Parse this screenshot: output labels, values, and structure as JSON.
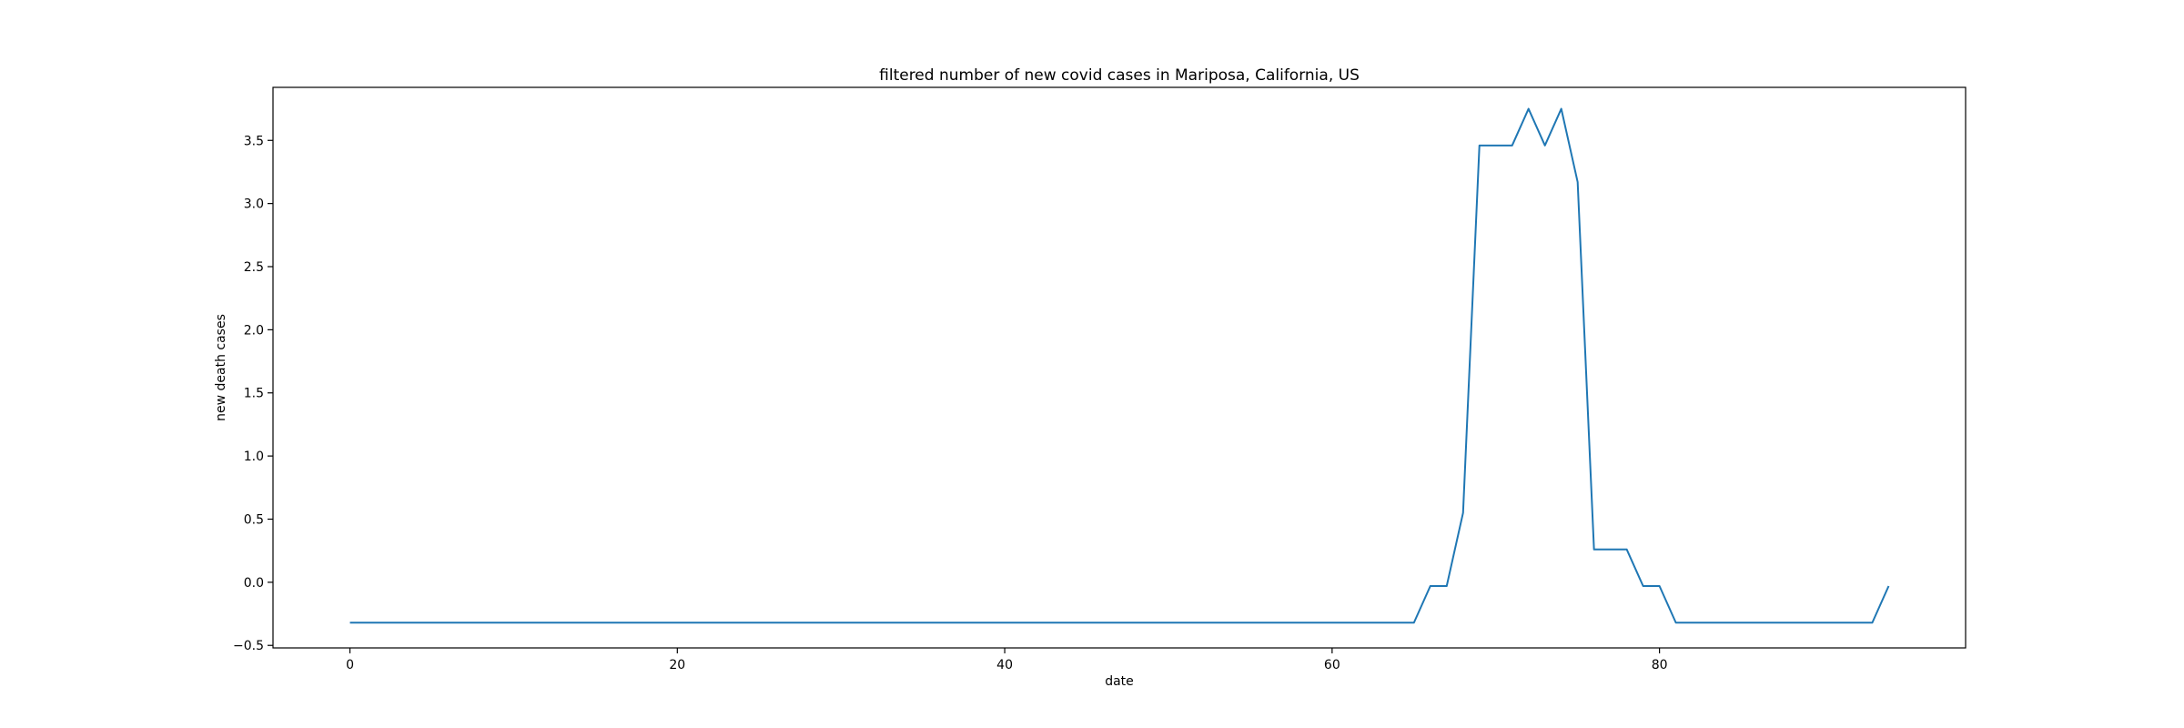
{
  "chart_data": {
    "type": "line",
    "title": "filtered number of new covid cases in Mariposa, California, US",
    "xlabel": "date",
    "ylabel": "new death cases",
    "xlim": [
      -4.7,
      98.7
    ],
    "ylim": [
      -0.52,
      3.92
    ],
    "xticks": [
      0,
      20,
      40,
      60,
      80
    ],
    "yticks": [
      -0.5,
      0.0,
      0.5,
      1.0,
      1.5,
      2.0,
      2.5,
      3.0,
      3.5
    ],
    "ytick_labels": [
      "−0.5",
      "0.0",
      "0.5",
      "1.0",
      "1.5",
      "2.0",
      "2.5",
      "3.0",
      "3.5"
    ],
    "grid": false,
    "legend": false,
    "series": [
      {
        "color": "#1f77b4",
        "x": [
          0,
          1,
          2,
          3,
          4,
          5,
          6,
          7,
          8,
          9,
          10,
          11,
          12,
          13,
          14,
          15,
          16,
          17,
          18,
          19,
          20,
          21,
          22,
          23,
          24,
          25,
          26,
          27,
          28,
          29,
          30,
          31,
          32,
          33,
          34,
          35,
          36,
          37,
          38,
          39,
          40,
          41,
          42,
          43,
          44,
          45,
          46,
          47,
          48,
          49,
          50,
          51,
          52,
          53,
          54,
          55,
          56,
          57,
          58,
          59,
          60,
          61,
          62,
          63,
          64,
          65,
          66,
          67,
          68,
          69,
          70,
          71,
          72,
          73,
          74,
          75,
          76,
          77,
          78,
          79,
          80,
          81,
          82,
          83,
          84,
          85,
          86,
          87,
          88,
          89,
          90,
          91,
          92,
          93,
          94
        ],
        "y": [
          -0.32,
          -0.32,
          -0.32,
          -0.32,
          -0.32,
          -0.32,
          -0.32,
          -0.32,
          -0.32,
          -0.32,
          -0.32,
          -0.32,
          -0.32,
          -0.32,
          -0.32,
          -0.32,
          -0.32,
          -0.32,
          -0.32,
          -0.32,
          -0.32,
          -0.32,
          -0.32,
          -0.32,
          -0.32,
          -0.32,
          -0.32,
          -0.32,
          -0.32,
          -0.32,
          -0.32,
          -0.32,
          -0.32,
          -0.32,
          -0.32,
          -0.32,
          -0.32,
          -0.32,
          -0.32,
          -0.32,
          -0.32,
          -0.32,
          -0.32,
          -0.32,
          -0.32,
          -0.32,
          -0.32,
          -0.32,
          -0.32,
          -0.32,
          -0.32,
          -0.32,
          -0.32,
          -0.32,
          -0.32,
          -0.32,
          -0.32,
          -0.32,
          -0.32,
          -0.32,
          -0.32,
          -0.32,
          -0.32,
          -0.32,
          -0.32,
          -0.32,
          -0.03,
          -0.03,
          0.55,
          3.46,
          3.46,
          3.46,
          3.75,
          3.46,
          3.75,
          3.17,
          0.26,
          0.26,
          0.26,
          -0.03,
          -0.03,
          -0.32,
          -0.32,
          -0.32,
          -0.32,
          -0.32,
          -0.32,
          -0.32,
          -0.32,
          -0.32,
          -0.32,
          -0.32,
          -0.32,
          -0.32,
          -0.03
        ]
      }
    ]
  }
}
